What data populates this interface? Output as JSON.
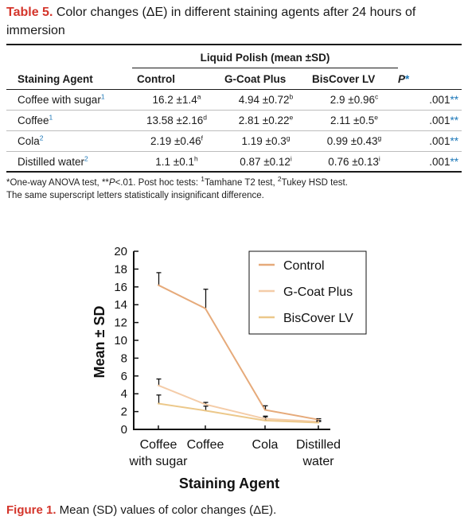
{
  "table": {
    "caption_label": "Table 5.",
    "caption_text": " Color changes (ΔE) in different staining agents after 24 hours of immersion",
    "group_header": "Liquid Polish (mean ±SD)",
    "headers": [
      "Staining Agent",
      "Control",
      "G-Coat Plus",
      "BisCover LV",
      "P"
    ],
    "p_marker": "*",
    "rows": [
      {
        "agent": "Coffee with sugar",
        "agent_sup": "1",
        "cells": [
          {
            "v": "16.2 ±1.4",
            "s": "a"
          },
          {
            "v": "4.94 ±0.72",
            "s": "b"
          },
          {
            "v": "2.9 ±0.96",
            "s": "c"
          }
        ],
        "p": ".001",
        "p_sup": "**"
      },
      {
        "agent": "Coffee",
        "agent_sup": "1",
        "cells": [
          {
            "v": "13.58 ±2.16",
            "s": "d"
          },
          {
            "v": "2.81 ±0.22",
            "s": "e"
          },
          {
            "v": "2.11 ±0.5",
            "s": "e"
          }
        ],
        "p": ".001",
        "p_sup": "**"
      },
      {
        "agent": "Cola",
        "agent_sup": "2",
        "cells": [
          {
            "v": "2.19 ±0.46",
            "s": "f"
          },
          {
            "v": "1.19 ±0.3",
            "s": "g"
          },
          {
            "v": "0.99 ±0.43",
            "s": "g"
          }
        ],
        "p": ".001",
        "p_sup": "**"
      },
      {
        "agent": "Distilled water",
        "agent_sup": "2",
        "cells": [
          {
            "v": "1.1 ±0.1",
            "s": "h"
          },
          {
            "v": "0.87 ±0.12",
            "s": "i"
          },
          {
            "v": "0.76 ±0.13",
            "s": "i"
          }
        ],
        "p": ".001",
        "p_sup": "**"
      }
    ],
    "footnote_line1": {
      "a": "*One-way ANOVA test, **",
      "b": "P",
      "c": "<.01. Post hoc tests: ",
      "d": "1",
      "e": "Tamhane T2 test, ",
      "f": "2",
      "g": "Tukey HSD test."
    },
    "footnote_line2": "The same superscript letters statistically insignificant difference."
  },
  "figure": {
    "caption_label": "Figure 1.",
    "caption_text": " Mean (SD) values of color changes (ΔE)."
  },
  "chart_data": {
    "type": "line",
    "categories": [
      [
        "Coffee",
        "with sugar"
      ],
      [
        "Coffee"
      ],
      [
        "Cola"
      ],
      [
        "Distilled",
        "water"
      ]
    ],
    "xlabel": "Staining Agent",
    "ylabel": "Mean ± SD",
    "ylim": [
      0,
      20
    ],
    "yticks": [
      0,
      2,
      4,
      6,
      8,
      10,
      12,
      14,
      16,
      18,
      20
    ],
    "legend_position": "top-right",
    "series": [
      {
        "name": "Control",
        "color": "#e6aa7a",
        "values": [
          16.2,
          13.58,
          2.19,
          1.1
        ],
        "sd": [
          1.4,
          2.16,
          0.46,
          0.1
        ]
      },
      {
        "name": "G-Coat Plus",
        "color": "#f4cca8",
        "values": [
          4.94,
          2.81,
          1.19,
          0.87
        ],
        "sd": [
          0.72,
          0.22,
          0.3,
          0.12
        ]
      },
      {
        "name": "BisCover LV",
        "color": "#ecc88a",
        "values": [
          2.9,
          2.11,
          0.99,
          0.76
        ],
        "sd": [
          0.96,
          0.5,
          0.43,
          0.13
        ]
      }
    ]
  }
}
